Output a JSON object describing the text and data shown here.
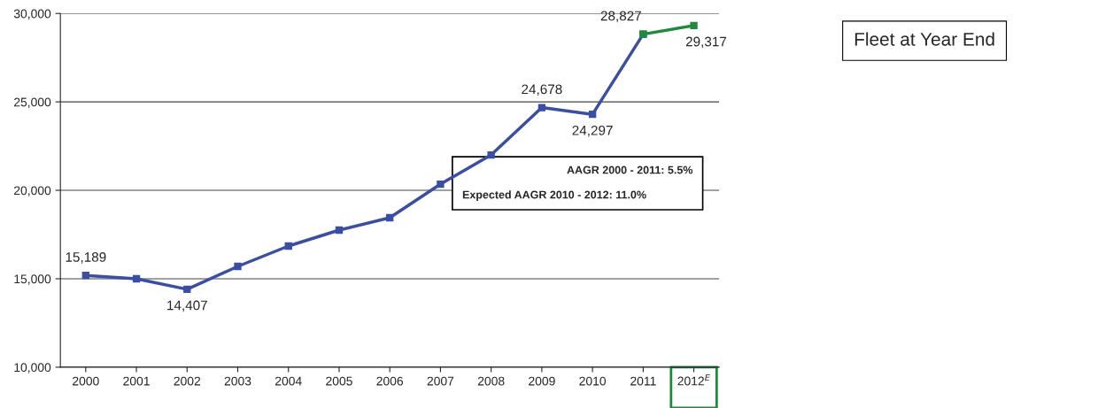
{
  "chart_data": {
    "type": "line",
    "title": "Fleet at Year End",
    "categories": [
      "2000",
      "2001",
      "2002",
      "2003",
      "2004",
      "2005",
      "2006",
      "2007",
      "2008",
      "2009",
      "2010",
      "2011",
      "2012$^{E}$"
    ],
    "series": [
      {
        "color": "#3a4fa3",
        "values": [
          15189,
          15000,
          14407,
          15700,
          16850,
          17750,
          18450,
          20350,
          22000,
          24678,
          24297,
          28827,
          null
        ],
        "value_labels": [
          "15,189",
          null,
          "14,407",
          null,
          null,
          null,
          null,
          null,
          null,
          "24,678",
          "24,297",
          "28,827",
          null
        ]
      },
      {
        "color": "#1f8a3c",
        "values": [
          null,
          null,
          null,
          null,
          null,
          null,
          null,
          null,
          null,
          null,
          null,
          28827,
          29317
        ],
        "value_labels": [
          null,
          null,
          null,
          null,
          null,
          null,
          null,
          null,
          null,
          null,
          null,
          null,
          "29,317"
        ]
      }
    ],
    "ylim": [
      10000,
      30000
    ],
    "yticks": [
      {
        "value": 10000,
        "label": "10,000"
      },
      {
        "value": 15000,
        "label": "15,000"
      },
      {
        "value": 20000,
        "label": "20,000"
      },
      {
        "value": 25000,
        "label": "25,000"
      },
      {
        "value": 30000,
        "label": "30,000"
      }
    ],
    "grid": "y",
    "marker": "square",
    "line_style": "solid",
    "legend": false,
    "annotations": [
      "AAGR 2000 - 2011: 5.5%",
      "Expected AAGR 2010 - 2012: 11.0%"
    ]
  }
}
